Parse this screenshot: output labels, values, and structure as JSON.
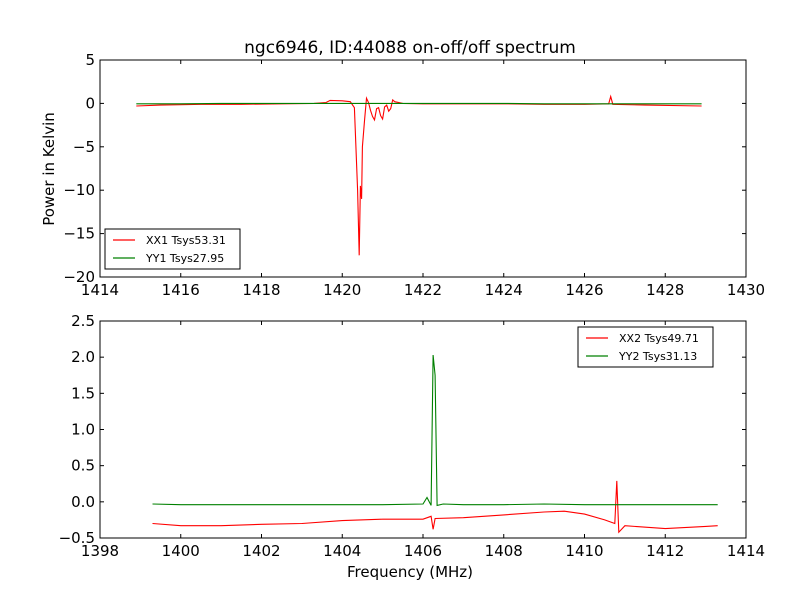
{
  "chart_data": [
    {
      "type": "line",
      "title": "ngc6946, ID:44088 on-off/off spectrum",
      "xlabel": "",
      "ylabel": "Power in Kelvin",
      "xlim": [
        1414,
        1430
      ],
      "ylim": [
        -20,
        5
      ],
      "xticks": [
        "1414",
        "1416",
        "1418",
        "1420",
        "1422",
        "1424",
        "1426",
        "1428",
        "1430"
      ],
      "yticks": [
        "5",
        "0",
        "−5",
        "−10",
        "−15",
        "−20"
      ],
      "legend_position": "lower-left",
      "series": [
        {
          "name": "XX1 Tsys53.31",
          "color": "#ff0000",
          "x": [
            1414.9,
            1415.5,
            1416.5,
            1417.5,
            1418.5,
            1419.3,
            1419.6,
            1419.7,
            1420.0,
            1420.2,
            1420.3,
            1420.38,
            1420.42,
            1420.45,
            1420.48,
            1420.5,
            1420.55,
            1420.6,
            1420.65,
            1420.7,
            1420.75,
            1420.8,
            1420.85,
            1420.9,
            1420.95,
            1421.0,
            1421.05,
            1421.1,
            1421.15,
            1421.2,
            1421.25,
            1421.3,
            1421.5,
            1422.0,
            1423.0,
            1424.0,
            1425.0,
            1426.0,
            1426.6,
            1426.65,
            1426.7,
            1427.5,
            1428.9
          ],
          "y": [
            -0.3,
            -0.2,
            -0.1,
            -0.1,
            -0.05,
            0.0,
            0.1,
            0.35,
            0.3,
            0.2,
            -0.5,
            -10,
            -17.5,
            -9.5,
            -11,
            -5,
            -2,
            0.6,
            0.1,
            -0.8,
            -1.5,
            -1.9,
            -0.6,
            -0.5,
            -1.4,
            -1.8,
            -0.4,
            -0.2,
            -0.9,
            -0.6,
            0.4,
            0.2,
            0.0,
            -0.05,
            -0.05,
            -0.05,
            -0.1,
            -0.1,
            -0.05,
            0.8,
            -0.1,
            -0.2,
            -0.3
          ]
        },
        {
          "name": "YY1 Tsys27.95",
          "color": "#008000",
          "x": [
            1414.9,
            1416,
            1417,
            1418,
            1419,
            1420,
            1420.5,
            1421,
            1422,
            1423,
            1424,
            1425,
            1426,
            1427,
            1428,
            1428.9
          ],
          "y": [
            -0.05,
            -0.05,
            0.0,
            0.0,
            0.0,
            0.0,
            0.0,
            0.0,
            0.0,
            0.0,
            0.0,
            -0.05,
            -0.05,
            -0.05,
            -0.05,
            -0.05
          ]
        }
      ]
    },
    {
      "type": "line",
      "title": "",
      "xlabel": "Frequency (MHz)",
      "ylabel": "",
      "xlim": [
        1398,
        1414
      ],
      "ylim": [
        -0.5,
        2.5
      ],
      "xticks": [
        "1398",
        "1400",
        "1402",
        "1404",
        "1406",
        "1408",
        "1410",
        "1412",
        "1414"
      ],
      "yticks": [
        "2.5",
        "2.0",
        "1.5",
        "1.0",
        "0.5",
        "0.0",
        "−0.5"
      ],
      "legend_position": "upper-right",
      "series": [
        {
          "name": "XX2 Tsys49.71",
          "color": "#ff0000",
          "x": [
            1399.3,
            1400.0,
            1401.0,
            1402.0,
            1403.0,
            1404.0,
            1405.0,
            1406.0,
            1406.2,
            1406.25,
            1406.3,
            1407.0,
            1408.0,
            1409.0,
            1409.5,
            1410.0,
            1410.5,
            1410.75,
            1410.8,
            1410.85,
            1411.0,
            1412.0,
            1413.0,
            1413.3
          ],
          "y": [
            -0.3,
            -0.33,
            -0.33,
            -0.31,
            -0.3,
            -0.26,
            -0.24,
            -0.24,
            -0.2,
            -0.38,
            -0.23,
            -0.22,
            -0.18,
            -0.14,
            -0.13,
            -0.17,
            -0.25,
            -0.3,
            0.29,
            -0.42,
            -0.33,
            -0.37,
            -0.34,
            -0.33
          ]
        },
        {
          "name": "YY2 Tsys31.13",
          "color": "#008000",
          "x": [
            1399.3,
            1400.0,
            1401.0,
            1402.0,
            1403.0,
            1404.0,
            1405.0,
            1406.0,
            1406.1,
            1406.2,
            1406.25,
            1406.3,
            1406.35,
            1406.5,
            1407.0,
            1408.0,
            1409.0,
            1410.0,
            1411.0,
            1412.0,
            1413.0,
            1413.3
          ],
          "y": [
            -0.03,
            -0.04,
            -0.04,
            -0.04,
            -0.04,
            -0.04,
            -0.04,
            -0.03,
            0.06,
            -0.05,
            2.03,
            1.75,
            -0.05,
            -0.03,
            -0.04,
            -0.04,
            -0.03,
            -0.04,
            -0.04,
            -0.04,
            -0.04,
            -0.04
          ]
        }
      ]
    }
  ]
}
